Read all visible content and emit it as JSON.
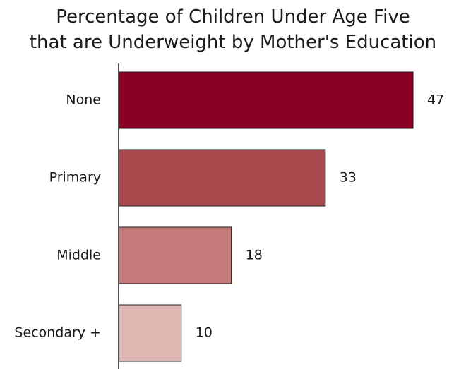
{
  "chart_data": {
    "type": "bar",
    "orientation": "horizontal",
    "title_lines": [
      "Percentage of Children Under Age Five",
      "that are Underweight by Mother's Education"
    ],
    "categories": [
      "None",
      "Primary",
      "Middle",
      "Secondary +"
    ],
    "values": [
      47,
      33,
      18,
      10
    ],
    "value_labels": [
      "47",
      "33",
      "18",
      "10"
    ],
    "colors": [
      "#8b0025",
      "#a8494d",
      "#c47a78",
      "#e0b6b2"
    ],
    "xlim": [
      0,
      47
    ],
    "grid": false,
    "legend": "none"
  }
}
